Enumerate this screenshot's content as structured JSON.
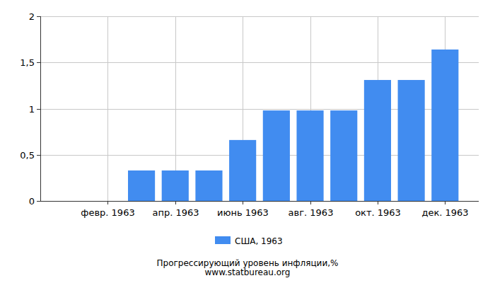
{
  "chart_data": {
    "type": "bar",
    "title": "Прогрессирующий уровень инфляции,%",
    "subtitle": "www.statbureau.org",
    "categories": [
      null,
      "февр. 1963",
      null,
      "апр. 1963",
      null,
      "июнь 1963",
      null,
      "авг. 1963",
      null,
      "окт. 1963",
      null,
      "дек. 1963"
    ],
    "series": [
      {
        "name": "США, 1963",
        "color": "#418cf0",
        "values": [
          0,
          0,
          0.33,
          0.33,
          0.33,
          0.66,
          0.98,
          0.98,
          0.98,
          1.31,
          1.31,
          1.64
        ]
      }
    ],
    "ylim": [
      0,
      2
    ],
    "yticks": [
      0,
      {
        "value": 0.5,
        "label": "0,5"
      },
      1,
      {
        "value": 1.5,
        "label": "1,5"
      },
      2
    ],
    "grid": true,
    "legend": "bottom"
  }
}
